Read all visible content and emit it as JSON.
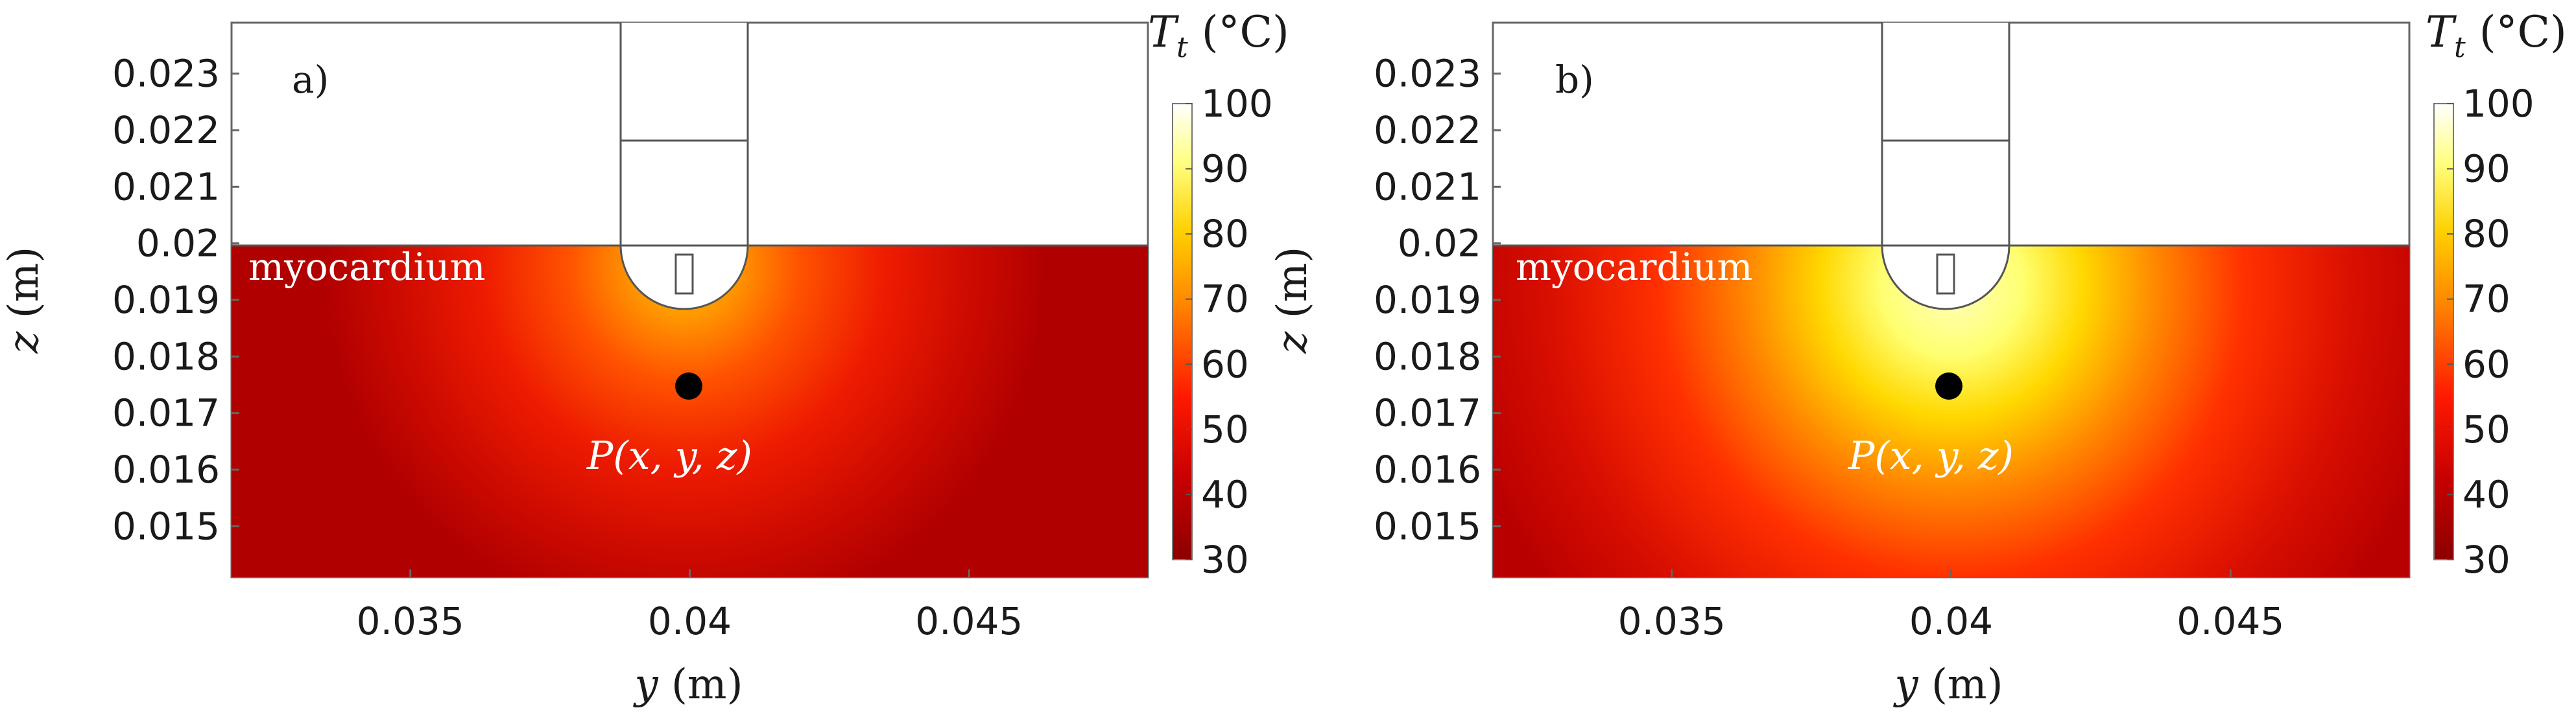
{
  "chart_data": [
    {
      "type": "heatmap",
      "panel_label": "a)",
      "region_label": "myocardium",
      "point_label": "P(x, y, z)",
      "xlabel": "y (m)",
      "ylabel": "z (m)",
      "x_ticks": [
        "0.035",
        "0.04",
        "0.045"
      ],
      "x_tick_values": [
        0.035,
        0.04,
        0.045
      ],
      "y_ticks": [
        "0.015",
        "0.016",
        "0.017",
        "0.018",
        "0.019",
        "0.02",
        "0.021",
        "0.022",
        "0.023"
      ],
      "y_tick_values": [
        0.015,
        0.016,
        0.017,
        0.018,
        0.019,
        0.02,
        0.021,
        0.022,
        0.023
      ],
      "xlim": [
        0.0318,
        0.0482
      ],
      "ylim": [
        0.0141,
        0.0239
      ],
      "tissue_surface_z": 0.02,
      "point": {
        "y": 0.04,
        "z": 0.0175
      },
      "colorbar_title_main": "T",
      "colorbar_title_sub": "t",
      "colorbar_unit": " (°C)",
      "colorbar_range": [
        30,
        100
      ],
      "colorbar_ticks": [
        "100",
        "90",
        "80",
        "70",
        "60",
        "50",
        "40",
        "30"
      ],
      "colorbar_tick_values": [
        100,
        90,
        80,
        70,
        60,
        50,
        40,
        30
      ],
      "hot_spot_temperature_approx": 68,
      "ambient_temperature_approx": 36
    },
    {
      "type": "heatmap",
      "panel_label": "b)",
      "region_label": "myocardium",
      "point_label": "P(x, y, z)",
      "xlabel": "y (m)",
      "ylabel": "z (m)",
      "x_ticks": [
        "0.035",
        "0.04",
        "0.045"
      ],
      "x_tick_values": [
        0.035,
        0.04,
        0.045
      ],
      "y_ticks": [
        "0.015",
        "0.016",
        "0.017",
        "0.018",
        "0.019",
        "0.02",
        "0.021",
        "0.022",
        "0.023"
      ],
      "y_tick_values": [
        0.015,
        0.016,
        0.017,
        0.018,
        0.019,
        0.02,
        0.021,
        0.022,
        0.023
      ],
      "xlim": [
        0.0318,
        0.0482
      ],
      "ylim": [
        0.0141,
        0.0239
      ],
      "tissue_surface_z": 0.02,
      "point": {
        "y": 0.04,
        "z": 0.0175
      },
      "colorbar_title_main": "T",
      "colorbar_title_sub": "t",
      "colorbar_unit": " (°C)",
      "colorbar_range": [
        30,
        100
      ],
      "colorbar_ticks": [
        "100",
        "90",
        "80",
        "70",
        "60",
        "50",
        "40",
        "30"
      ],
      "colorbar_tick_values": [
        100,
        90,
        80,
        70,
        60,
        50,
        40,
        30
      ],
      "hot_spot_temperature_approx": 96,
      "ambient_temperature_approx": 40
    }
  ]
}
